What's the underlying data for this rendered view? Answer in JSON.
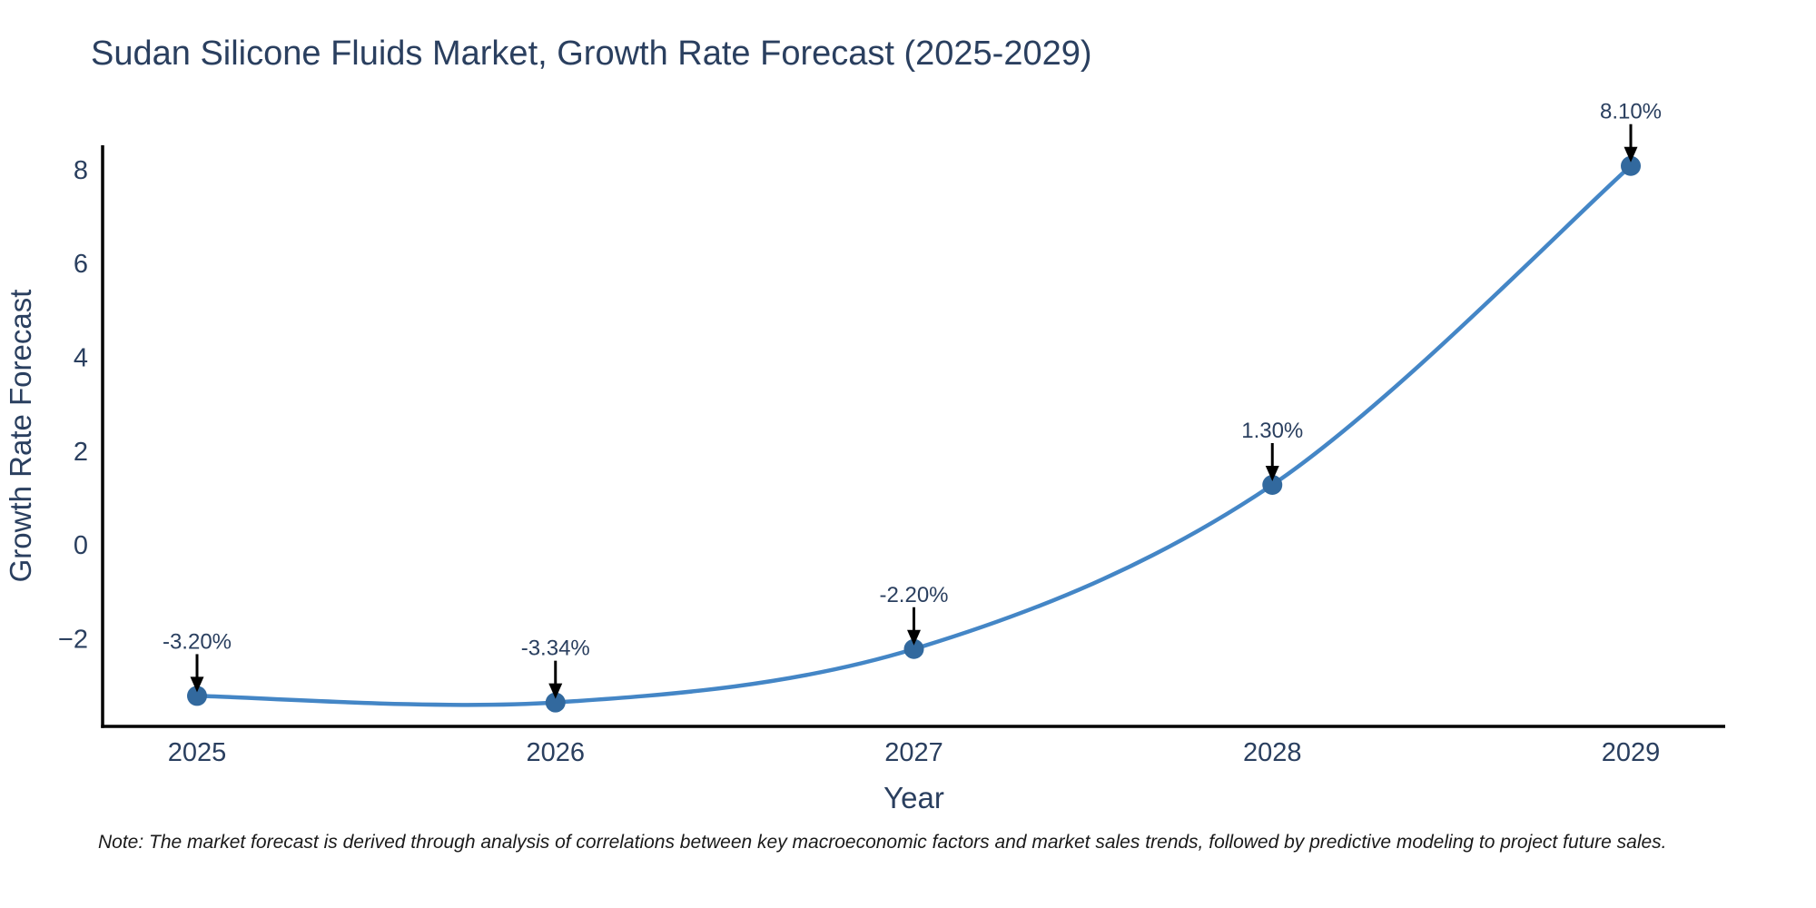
{
  "title": {
    "text": "Sudan Silicone Fluids Market, Growth Rate Forecast (2025-2029)",
    "color": "#2a3f5f"
  },
  "note": {
    "text": "Note: The market forecast is derived through analysis of correlations between key macroeconomic factors and market sales trends, followed by predictive modeling to project future sales."
  },
  "chart_data": {
    "type": "line",
    "title": "Sudan Silicone Fluids Market, Growth Rate Forecast (2025-2029)",
    "x": [
      2025,
      2026,
      2027,
      2028,
      2029
    ],
    "xtick_labels": [
      "2025",
      "2026",
      "2027",
      "2028",
      "2029"
    ],
    "series": [
      {
        "name": "Growth Rate Forecast",
        "values": [
          -3.2,
          -3.34,
          -2.2,
          1.3,
          8.1
        ]
      }
    ],
    "point_labels": [
      "-3.20%",
      "-3.34%",
      "-2.20%",
      "1.30%",
      "8.10%"
    ],
    "xlabel": "Year",
    "ylabel": "Growth Rate Forecast",
    "yticks": [
      8,
      6,
      4,
      2,
      0,
      -2
    ],
    "ytick_labels": [
      "8",
      "6",
      "4",
      "2",
      "0",
      "−2"
    ],
    "ylim": [
      -3.85,
      8.54
    ],
    "grid": false,
    "legend": false,
    "line_shape": "spline",
    "line_color": "#4486c6",
    "marker_color": "#32699e",
    "axis_color": "#000000",
    "tick_color": "#2a3f5f",
    "annotation_color": "#2a3f5f",
    "arrow_color": "#000000"
  }
}
